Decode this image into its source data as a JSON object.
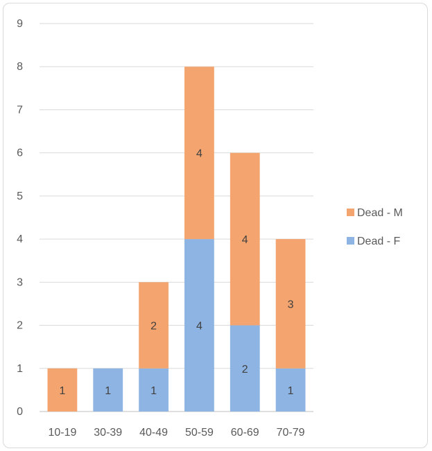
{
  "chart_data": {
    "type": "bar",
    "stacked": true,
    "categories": [
      "10-19",
      "30-39",
      "40-49",
      "50-59",
      "60-69",
      "70-79"
    ],
    "series": [
      {
        "name": "Dead - F",
        "values": [
          0,
          1,
          1,
          4,
          2,
          1
        ],
        "color": "#8db4e2"
      },
      {
        "name": "Dead - M",
        "values": [
          1,
          0,
          2,
          4,
          4,
          3
        ],
        "color": "#f4a46e"
      }
    ],
    "data_labels": [
      [
        "",
        "1",
        "1",
        "4",
        "2",
        "1"
      ],
      [
        "1",
        "",
        "2",
        "4",
        "4",
        "3"
      ]
    ],
    "ylim": [
      0,
      9
    ],
    "yticks": [
      "0",
      "1",
      "2",
      "3",
      "4",
      "5",
      "6",
      "7",
      "8",
      "9"
    ],
    "grid": true,
    "legend_position": "right",
    "legend_order": [
      "Dead - M",
      "Dead - F"
    ]
  }
}
